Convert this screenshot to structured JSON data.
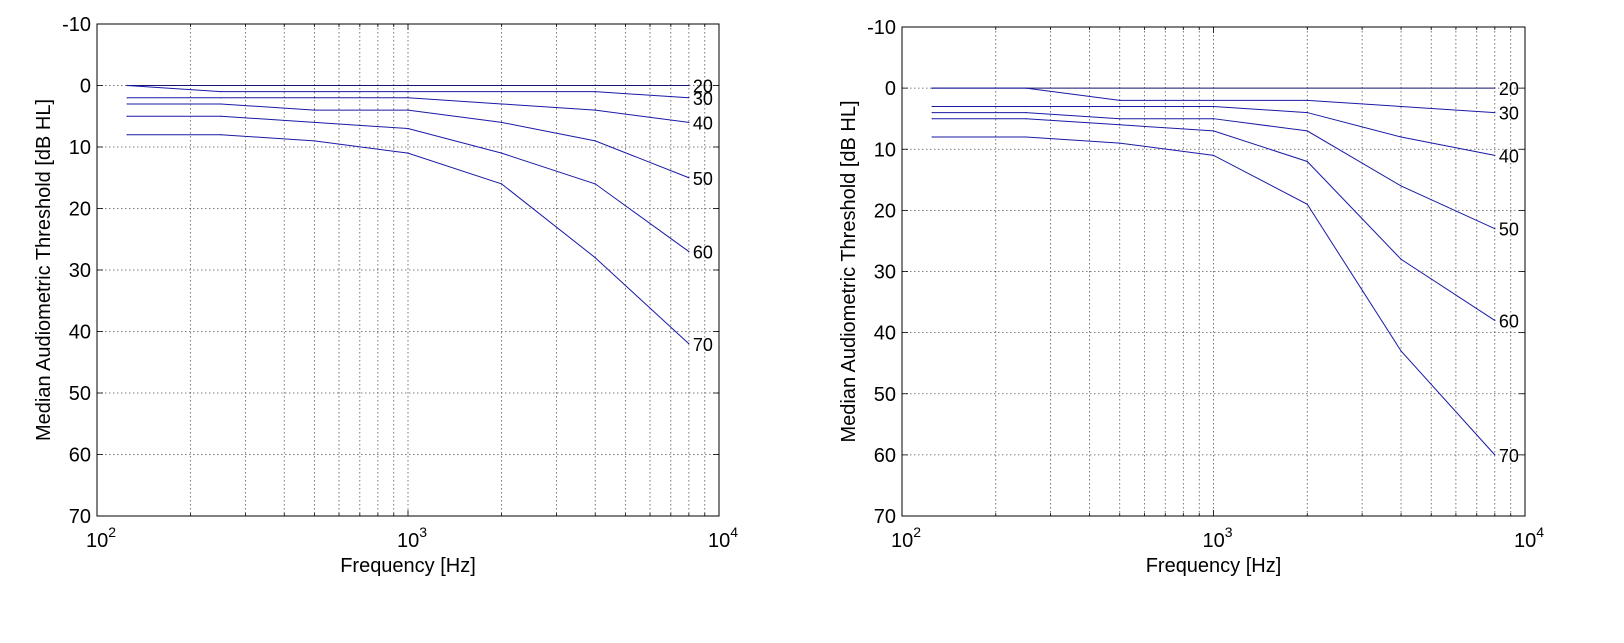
{
  "colors": {
    "line": "#1a1aa6",
    "line_top": "#14146e",
    "grid": "#555555",
    "axis": "#000000",
    "background": "#ffffff"
  },
  "chart_data": [
    {
      "type": "line",
      "xscale": "log",
      "xlim": [
        100,
        10000
      ],
      "ylim": [
        -10,
        70
      ],
      "y_reversed": true,
      "grid": true,
      "xlabel": "Frequency [Hz]",
      "ylabel": "Median Audiometric Threshold [dB HL]",
      "x_ticks": [
        {
          "value": 100,
          "base": "10",
          "exp": "2"
        },
        {
          "value": 1000,
          "base": "10",
          "exp": "3"
        },
        {
          "value": 10000,
          "base": "10",
          "exp": "4"
        }
      ],
      "y_ticks": [
        -10,
        0,
        10,
        20,
        30,
        40,
        50,
        60,
        70
      ],
      "x": [
        125,
        250,
        500,
        1000,
        2000,
        4000,
        8000
      ],
      "series": [
        {
          "name": "20",
          "values": [
            0,
            0,
            0,
            0,
            0,
            0,
            0
          ]
        },
        {
          "name": "30",
          "values": [
            0,
            1,
            1,
            1,
            1,
            1,
            2
          ]
        },
        {
          "name": "40",
          "values": [
            2,
            2,
            2,
            2,
            3,
            4,
            6
          ]
        },
        {
          "name": "50",
          "values": [
            3,
            3,
            4,
            4,
            6,
            9,
            15
          ]
        },
        {
          "name": "60",
          "values": [
            5,
            5,
            6,
            7,
            11,
            16,
            27
          ]
        },
        {
          "name": "70",
          "values": [
            8,
            8,
            9,
            11,
            16,
            28,
            42
          ]
        }
      ]
    },
    {
      "type": "line",
      "xscale": "log",
      "xlim": [
        100,
        10000
      ],
      "ylim": [
        -10,
        70
      ],
      "y_reversed": true,
      "grid": true,
      "xlabel": "Frequency [Hz]",
      "ylabel": "Median Audiometric Threshold [dB HL]",
      "x_ticks": [
        {
          "value": 100,
          "base": "10",
          "exp": "2"
        },
        {
          "value": 1000,
          "base": "10",
          "exp": "3"
        },
        {
          "value": 10000,
          "base": "10",
          "exp": "4"
        }
      ],
      "y_ticks": [
        -10,
        0,
        10,
        20,
        30,
        40,
        50,
        60,
        70
      ],
      "x": [
        125,
        250,
        500,
        1000,
        2000,
        4000,
        8000
      ],
      "series": [
        {
          "name": "20",
          "values": [
            0,
            0,
            0,
            0,
            0,
            0,
            0
          ]
        },
        {
          "name": "30",
          "values": [
            0,
            0,
            2,
            2,
            2,
            3,
            4
          ]
        },
        {
          "name": "40",
          "values": [
            3,
            3,
            3,
            3,
            4,
            8,
            11
          ]
        },
        {
          "name": "50",
          "values": [
            4,
            4,
            5,
            5,
            7,
            16,
            23
          ]
        },
        {
          "name": "60",
          "values": [
            5,
            5,
            6,
            7,
            12,
            28,
            38
          ]
        },
        {
          "name": "70",
          "values": [
            8,
            8,
            9,
            11,
            19,
            43,
            60
          ]
        }
      ]
    }
  ]
}
